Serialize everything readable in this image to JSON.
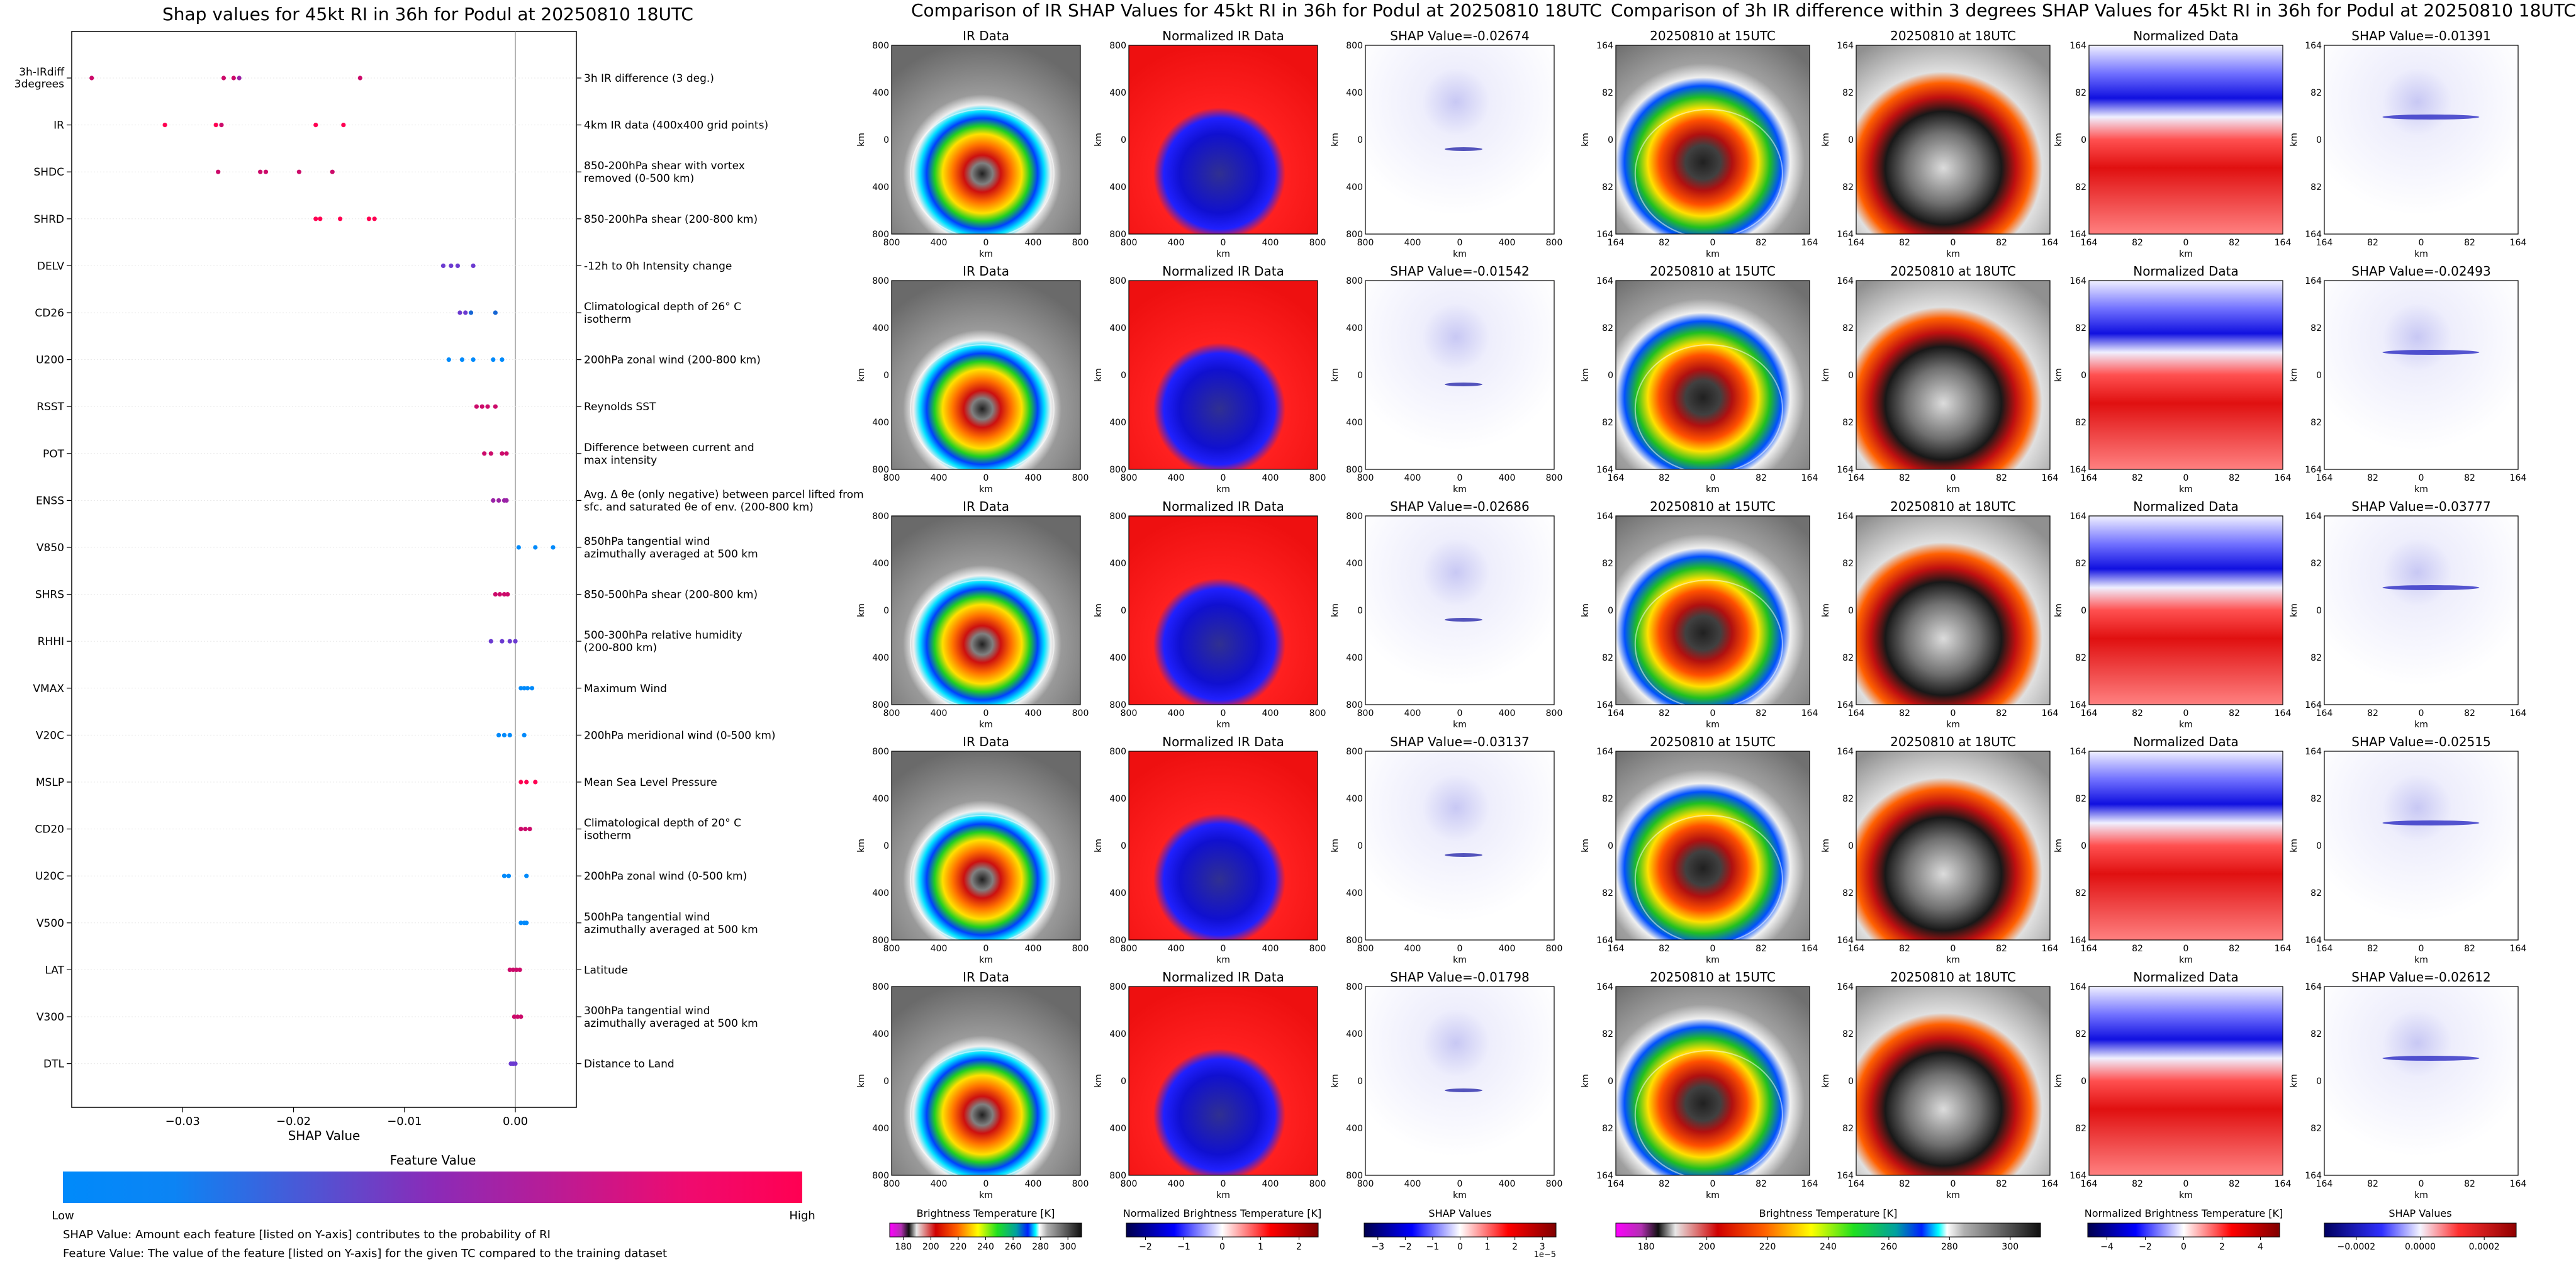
{
  "left_title": "Shap values for 45kt RI in 36h for Podul at 20250810 18UTC",
  "mid_title": "Comparison of IR SHAP Values for 45kt RI in 36h for Podul at 20250810 18UTC",
  "right_title": "Comparison of 3h IR difference within 3 degrees SHAP Values for 45kt RI in 36h for Podul at 20250810 18UTC",
  "chart_data": [
    {
      "type": "scatter",
      "title": "Shap values for 45kt RI in 36h for Podul at 20250810 18UTC",
      "xlabel": "SHAP Value",
      "xlim": [
        -0.04,
        0.0055
      ],
      "xticks": [
        "−0.03",
        "−0.02",
        "−0.01",
        "0.00"
      ],
      "xtick_values": [
        -0.03,
        -0.02,
        -0.01,
        0.0
      ],
      "colorbar": {
        "title": "Feature Value",
        "low": "Low",
        "high": "High",
        "colors": [
          "#008afb",
          "#ff0052"
        ]
      },
      "features": [
        {
          "name": "3h-IRdiff 3degrees",
          "label": "3h IR difference (3 deg.)",
          "values": [
            -0.0382,
            -0.0263,
            -0.0254,
            -0.0249,
            -0.014
          ],
          "colors": [
            "#cc0a6a",
            "#cc0a6a",
            "#cc0a6a",
            "#9a22a6",
            "#cc0a6a"
          ]
        },
        {
          "name": "IR",
          "label": "4km IR data (400x400 grid points)",
          "values": [
            -0.0316,
            -0.027,
            -0.0265,
            -0.018,
            -0.0155
          ],
          "colors": [
            "#ff0052",
            "#ff0052",
            "#cc0a6a",
            "#ff0052",
            "#ff0052"
          ]
        },
        {
          "name": "SHDC",
          "label": "850-200hPa shear with vortex removed (0-500 km)",
          "values": [
            -0.0268,
            -0.023,
            -0.0225,
            -0.0195,
            -0.0165
          ],
          "colors": [
            "#cc0a6a",
            "#cc0a6a",
            "#cc0a6a",
            "#cc0a6a",
            "#cc0a6a"
          ]
        },
        {
          "name": "SHRD",
          "label": "850-200hPa shear (200-800 km)",
          "values": [
            -0.018,
            -0.0176,
            -0.0158,
            -0.0132,
            -0.0127
          ],
          "colors": [
            "#ff0052",
            "#ff0052",
            "#ff0052",
            "#ff0052",
            "#ff0052"
          ]
        },
        {
          "name": "DELV",
          "label": "-12h to 0h Intensity change",
          "values": [
            -0.0065,
            -0.0058,
            -0.0052,
            -0.0038
          ],
          "colors": [
            "#6b3ad0",
            "#6b3ad0",
            "#6b3ad0",
            "#6b3ad0"
          ]
        },
        {
          "name": "CD26",
          "label": "Climatological depth of 26° C isotherm",
          "values": [
            -0.005,
            -0.0045,
            -0.004,
            -0.0018
          ],
          "colors": [
            "#6b3ad0",
            "#6b3ad0",
            "#1565d4",
            "#1565d4"
          ]
        },
        {
          "name": "U200",
          "label": "200hPa zonal wind (200-800 km)",
          "values": [
            -0.006,
            -0.0048,
            -0.0038,
            -0.002,
            -0.0012
          ],
          "colors": [
            "#008afb",
            "#008afb",
            "#008afb",
            "#008afb",
            "#008afb"
          ]
        },
        {
          "name": "RSST",
          "label": "Reynolds SST",
          "values": [
            -0.0035,
            -0.003,
            -0.0025,
            -0.0018
          ],
          "colors": [
            "#cc0a6a",
            "#cc0a6a",
            "#cc0a6a",
            "#cc0a6a"
          ]
        },
        {
          "name": "POT",
          "label": "Difference between current and max intensity",
          "values": [
            -0.0028,
            -0.0022,
            -0.0012,
            -0.0008
          ],
          "colors": [
            "#cc0a6a",
            "#cc0a6a",
            "#cc0a6a",
            "#cc0a6a"
          ]
        },
        {
          "name": "ENSS",
          "label": "Avg. Δ θe (only negative) between parcel lifted from sfc. and saturated θe of env. (200-800 km)",
          "values": [
            -0.002,
            -0.0015,
            -0.001,
            -0.0008
          ],
          "colors": [
            "#9a22a6",
            "#9a22a6",
            "#9a22a6",
            "#9a22a6"
          ]
        },
        {
          "name": "V850",
          "label": "850hPa tangential wind azimuthally averaged at 500 km",
          "values": [
            0.0003,
            0.0018,
            0.0034
          ],
          "colors": [
            "#008afb",
            "#008afb",
            "#008afb"
          ]
        },
        {
          "name": "SHRS",
          "label": "850-500hPa shear (200-800 km)",
          "values": [
            -0.0018,
            -0.0014,
            -0.001,
            -0.0007
          ],
          "colors": [
            "#cc0a6a",
            "#cc0a6a",
            "#cc0a6a",
            "#cc0a6a"
          ]
        },
        {
          "name": "RHHI",
          "label": "500-300hPa relative humidity (200-800 km)",
          "values": [
            -0.0022,
            -0.0012,
            -0.0005,
            0.0
          ],
          "colors": [
            "#6b3ad0",
            "#6b3ad0",
            "#6b3ad0",
            "#6b3ad0"
          ]
        },
        {
          "name": "VMAX",
          "label": "Maximum Wind",
          "values": [
            0.0005,
            0.0008,
            0.0011,
            0.0015
          ],
          "colors": [
            "#008afb",
            "#008afb",
            "#008afb",
            "#008afb"
          ]
        },
        {
          "name": "V20C",
          "label": "200hPa meridional wind (0-500 km)",
          "values": [
            -0.0015,
            -0.001,
            -0.0005,
            0.0008
          ],
          "colors": [
            "#008afb",
            "#008afb",
            "#008afb",
            "#008afb"
          ]
        },
        {
          "name": "MSLP",
          "label": "Mean Sea Level Pressure",
          "values": [
            0.0005,
            0.001,
            0.0018
          ],
          "colors": [
            "#ff0052",
            "#ff0052",
            "#ff0052"
          ]
        },
        {
          "name": "CD20",
          "label": "Climatological depth of 20° C isotherm",
          "values": [
            0.0005,
            0.0009,
            0.0013
          ],
          "colors": [
            "#cc0a6a",
            "#cc0a6a",
            "#cc0a6a"
          ]
        },
        {
          "name": "U20C",
          "label": "200hPa zonal wind (0-500 km)",
          "values": [
            -0.001,
            -0.0006,
            0.001
          ],
          "colors": [
            "#008afb",
            "#008afb",
            "#008afb"
          ]
        },
        {
          "name": "V500",
          "label": "500hPa tangential wind azimuthally averaged at 500 km",
          "values": [
            0.0005,
            0.0008,
            0.001
          ],
          "colors": [
            "#008afb",
            "#008afb",
            "#008afb"
          ]
        },
        {
          "name": "LAT",
          "label": "Latitude",
          "values": [
            -0.0005,
            -0.0002,
            0.0001,
            0.0004
          ],
          "colors": [
            "#cc0a6a",
            "#cc0a6a",
            "#cc0a6a",
            "#cc0a6a"
          ]
        },
        {
          "name": "V300",
          "label": "300hPa tangential wind azimuthally averaged at 500 km",
          "values": [
            -0.0001,
            0.0002,
            0.0005
          ],
          "colors": [
            "#cc0a6a",
            "#cc0a6a",
            "#cc0a6a"
          ]
        },
        {
          "name": "DTL",
          "label": "Distance to Land",
          "values": [
            -0.0004,
            -0.0002,
            0.0
          ],
          "colors": [
            "#6b3ad0",
            "#6b3ad0",
            "#6b3ad0"
          ]
        }
      ],
      "footnotes": [
        "SHAP Value: Amount each feature [listed on Y-axis] contributes to the probability of RI",
        "Feature Value: The value of the feature [listed on Y-axis] for the given TC compared to the training dataset"
      ]
    },
    {
      "type": "heatmap",
      "title": "Comparison of IR SHAP Values for 45kt RI in 36h for Podul at 20250810 18UTC",
      "column_titles": [
        "IR Data",
        "Normalized IR Data"
      ],
      "shap_titles": [
        "SHAP Value=-0.02674",
        "SHAP Value=-0.01542",
        "SHAP Value=-0.02686",
        "SHAP Value=-0.03137",
        "SHAP Value=-0.01798"
      ],
      "axis_label": "km",
      "xticks": [
        "800",
        "400",
        "0",
        "400",
        "800"
      ],
      "yticks": [
        "800",
        "400",
        "0",
        "400",
        "800"
      ],
      "colorbars": [
        {
          "label": "Brightness Temperature [K]",
          "ticks": [
            "180",
            "200",
            "220",
            "240",
            "260",
            "280",
            "300"
          ]
        },
        {
          "label": "Normalized Brightness Temperature [K]",
          "ticks": [
            "−2",
            "−1",
            "0",
            "1",
            "2"
          ]
        },
        {
          "label": "SHAP Values",
          "ticks": [
            "−3",
            "−2",
            "−1",
            "0",
            "1",
            "2",
            "3"
          ],
          "offset": "1e−5"
        }
      ]
    },
    {
      "type": "heatmap",
      "title": "Comparison of 3h IR difference within 3 degrees SHAP Values for 45kt RI in 36h for Podul at 20250810 18UTC",
      "column_titles": [
        "20250810 at 15UTC",
        "20250810 at 18UTC",
        "Normalized Data"
      ],
      "shap_titles": [
        "SHAP Value=-0.01391",
        "SHAP Value=-0.02493",
        "SHAP Value=-0.03777",
        "SHAP Value=-0.02515",
        "SHAP Value=-0.02612"
      ],
      "axis_label": "km",
      "xticks": [
        "164",
        "82",
        "0",
        "82",
        "164"
      ],
      "yticks": [
        "164",
        "82",
        "0",
        "82",
        "164"
      ],
      "colorbars": [
        {
          "label": "Brightness Temperature [K]",
          "ticks": [
            "180",
            "200",
            "220",
            "240",
            "260",
            "280",
            "300"
          ]
        },
        {
          "label": "Normalized Brightness Temperature [K]",
          "ticks": [
            "−4",
            "−2",
            "0",
            "2",
            "4"
          ]
        },
        {
          "label": "SHAP Values",
          "ticks": [
            "−0.0002",
            "0.0000",
            "0.0002"
          ]
        }
      ]
    }
  ]
}
